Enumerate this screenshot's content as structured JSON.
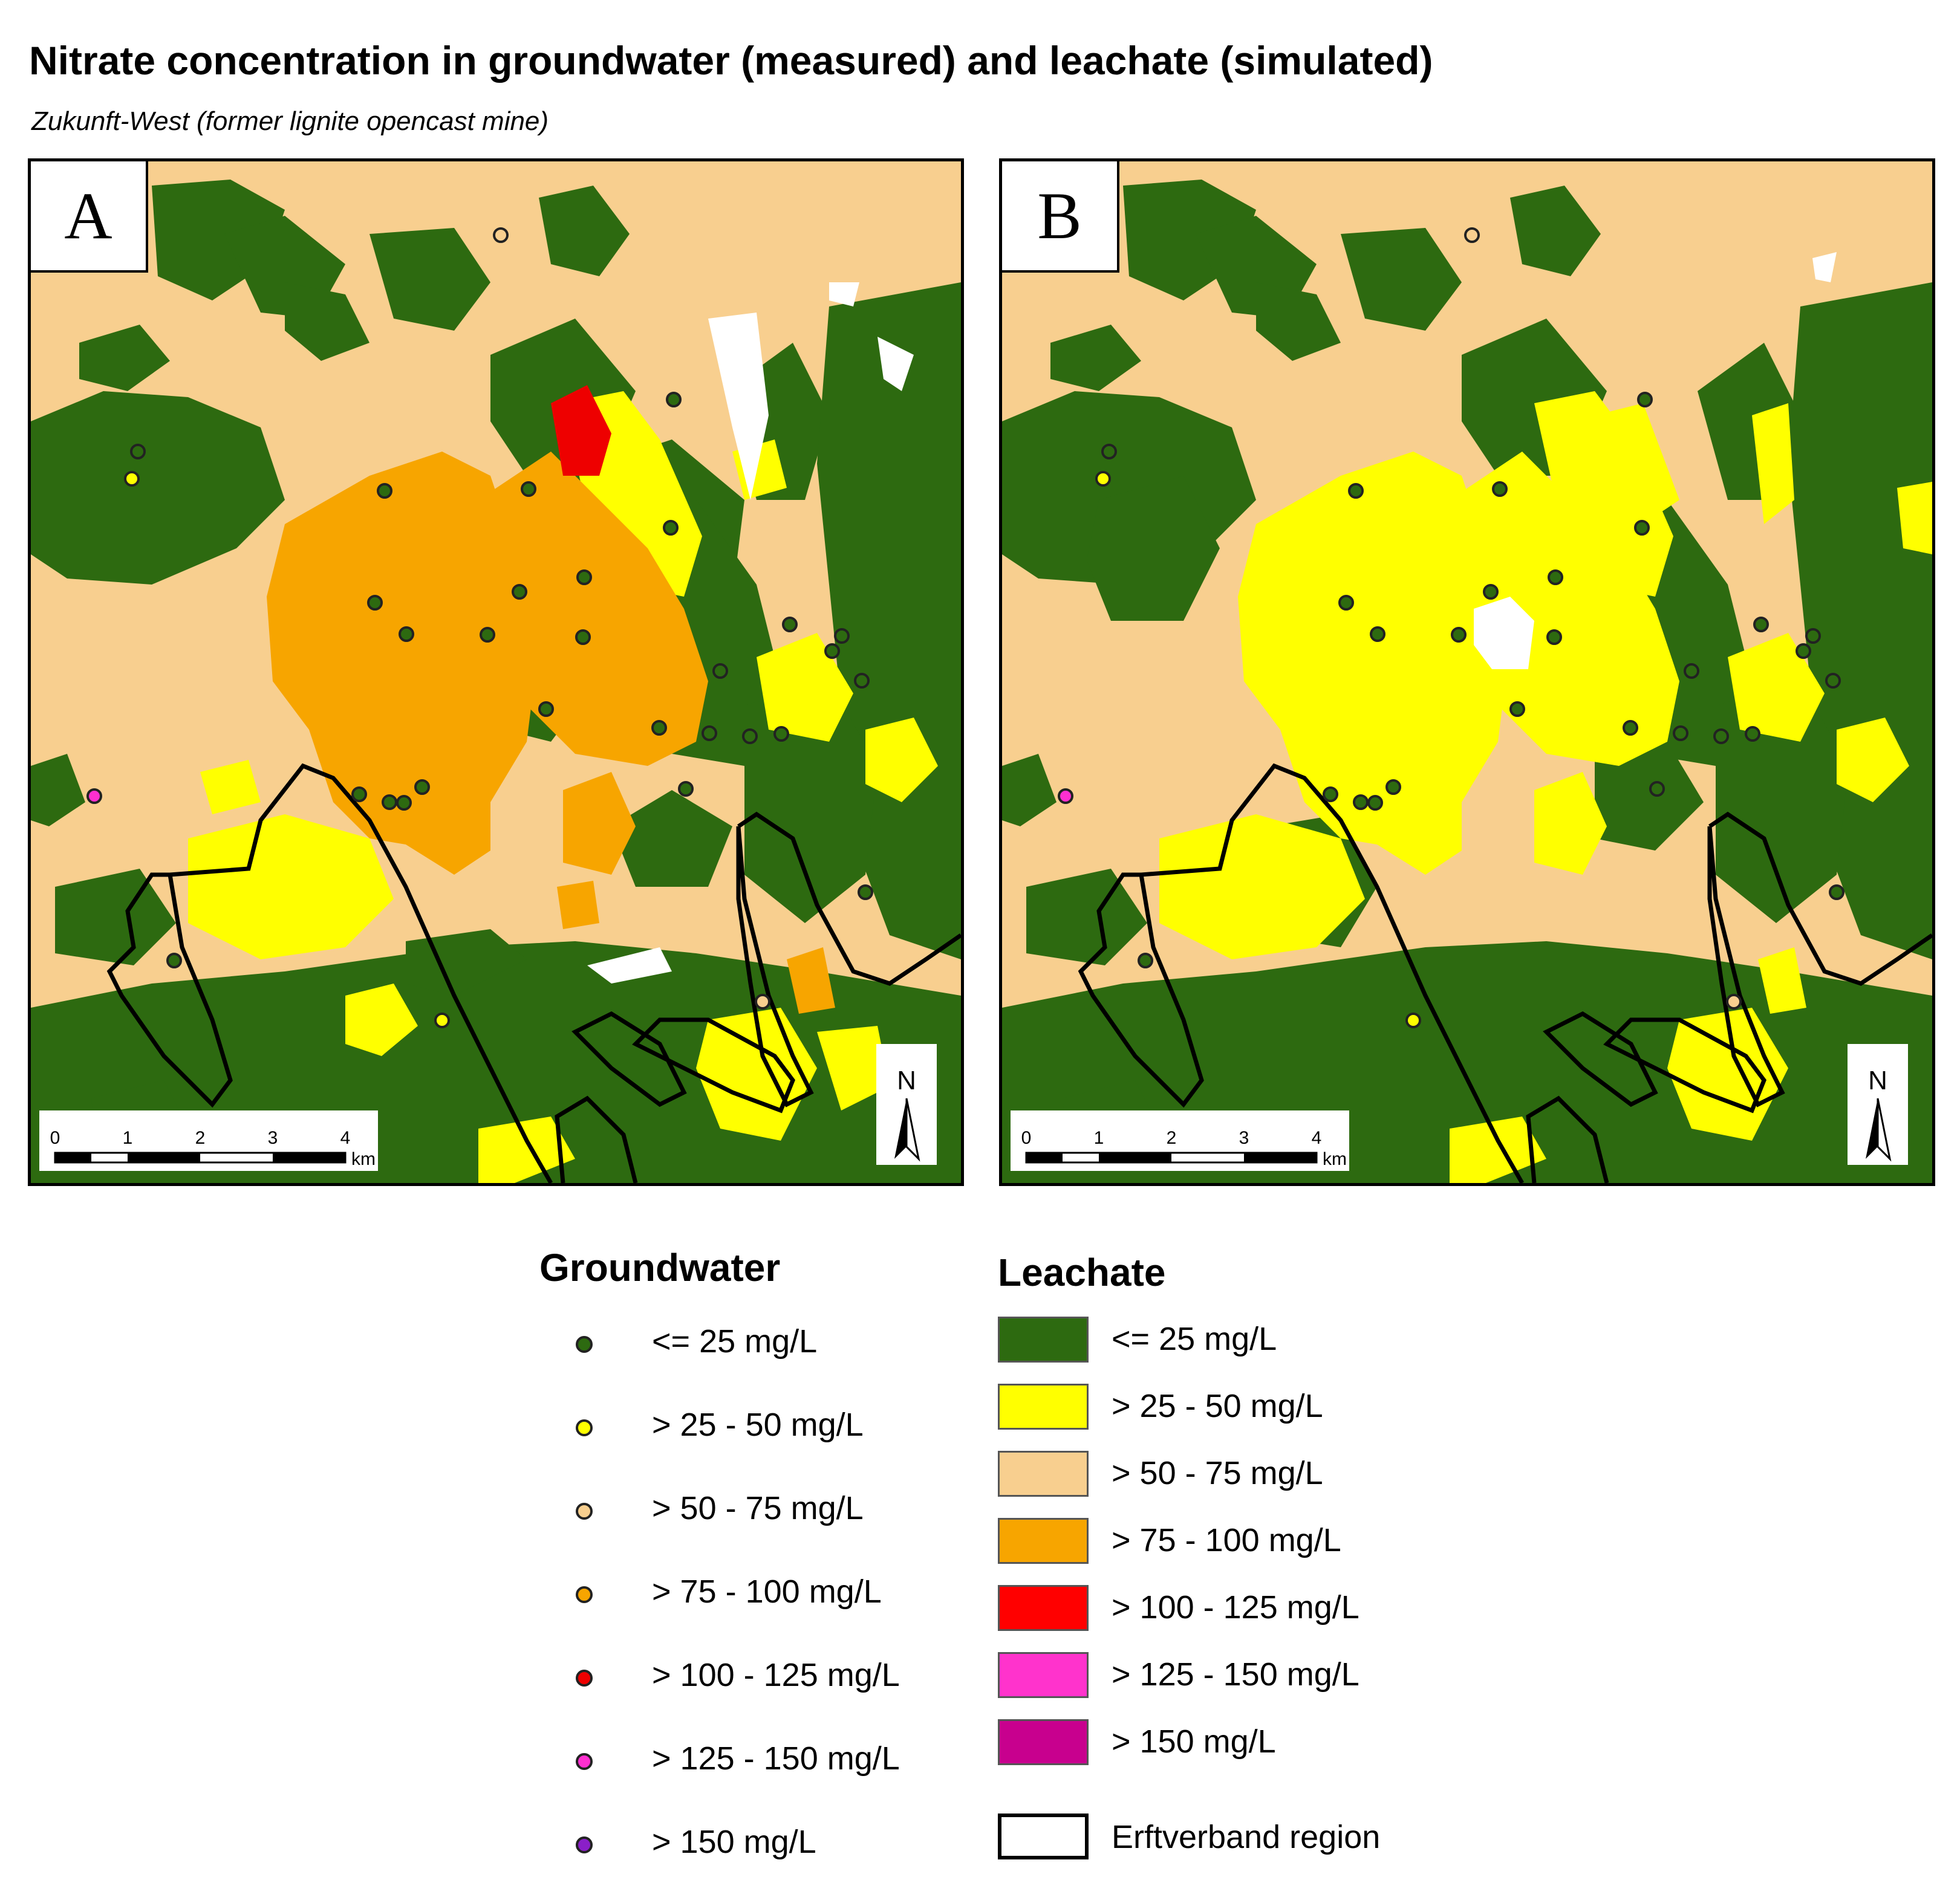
{
  "title": "Nitrate concentration in groundwater (measured) and leachate (simulated)",
  "subtitle": "Zukunft-West (former lignite opencast mine)",
  "panels": [
    {
      "label": "A"
    },
    {
      "label": "B"
    }
  ],
  "scalebar": {
    "ticks": [
      "0",
      "1",
      "2",
      "3",
      "4"
    ],
    "unit": "km"
  },
  "north_arrow": "N",
  "legend": {
    "groundwater": {
      "title": "Groundwater",
      "items": [
        {
          "label": "<= 25 mg/L",
          "color": "#2d6a10"
        },
        {
          "label": "> 25 - 50 mg/L",
          "color": "#ffff00"
        },
        {
          "label": "> 50 - 75 mg/L",
          "color": "#f8cf8f"
        },
        {
          "label": "> 75 - 100 mg/L",
          "color": "#f7a500"
        },
        {
          "label": "> 100 - 125 mg/L",
          "color": "#ee0000"
        },
        {
          "label": "> 125 - 150 mg/L",
          "color": "#ff2fd0"
        },
        {
          "label": "> 150 mg/L",
          "color": "#8a1fc8"
        }
      ]
    },
    "leachate": {
      "title": "Leachate",
      "items": [
        {
          "label": "<= 25 mg/L",
          "color": "#2d6a10"
        },
        {
          "label": "> 25 - 50 mg/L",
          "color": "#ffff00"
        },
        {
          "label": "> 50 - 75 mg/L",
          "color": "#f8cf8f"
        },
        {
          "label": "> 75 - 100 mg/L",
          "color": "#f7a500"
        },
        {
          "label": "> 100 - 125 mg/L",
          "color": "#ff0000"
        },
        {
          "label": "> 125 - 150 mg/L",
          "color": "#ff33cc"
        },
        {
          "label": "> 150 mg/L",
          "color": "#c8008e"
        }
      ]
    },
    "region": {
      "label": "Erftverband region"
    }
  }
}
